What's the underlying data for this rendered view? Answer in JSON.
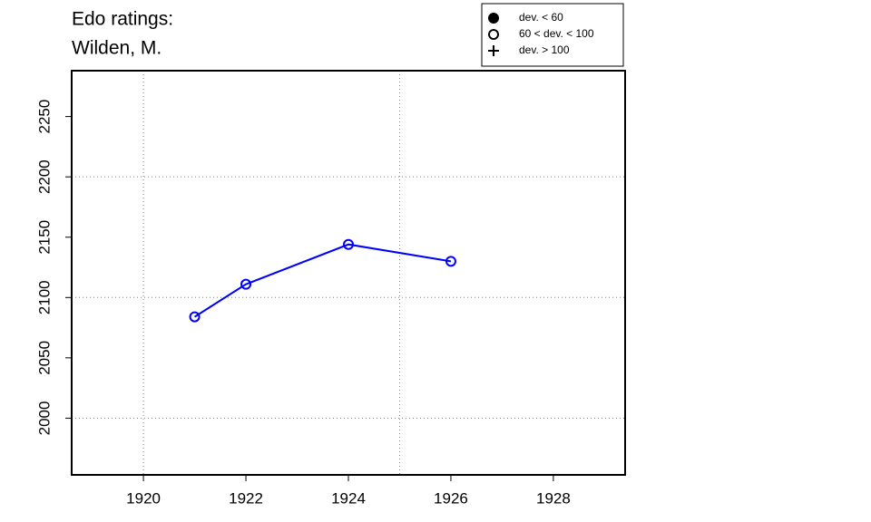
{
  "chart_data": {
    "type": "line",
    "title": "Edo ratings:",
    "subtitle": "Wilden, M.",
    "x": [
      1921,
      1922,
      1924,
      1926
    ],
    "series": [
      {
        "color": "#0000ff",
        "marker": "open-circle",
        "values": [
          2084,
          2111,
          2144,
          2130
        ]
      }
    ],
    "xlim": [
      1918.6,
      1929.4
    ],
    "xticks": [
      1920,
      1922,
      1924,
      1926,
      1928
    ],
    "ylim": [
      1953,
      2288
    ],
    "yticks": [
      2000,
      2050,
      2100,
      2150,
      2200,
      2250
    ],
    "xgrid": [
      1920,
      1925
    ],
    "ygrid": [
      2000,
      2100,
      2200
    ],
    "legend": {
      "position": "top-right",
      "entries": [
        {
          "label": "dev. < 60",
          "marker": "filled-circle"
        },
        {
          "label": "60 < dev. < 100",
          "marker": "open-circle"
        },
        {
          "label": "dev. > 100",
          "marker": "plus"
        }
      ]
    }
  }
}
